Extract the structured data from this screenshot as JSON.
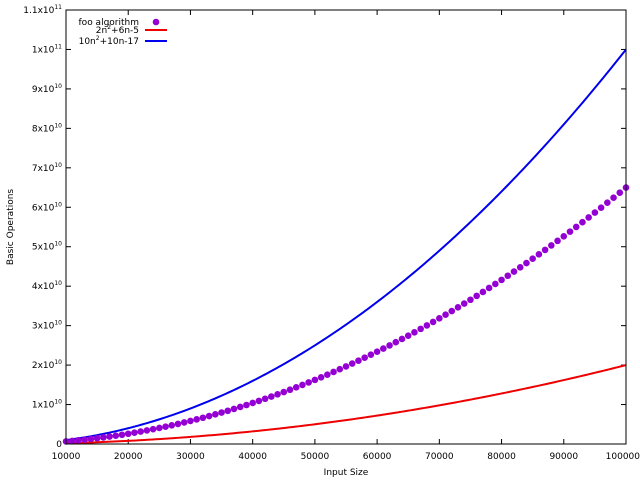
{
  "chart_data": {
    "type": "scatter",
    "title": "",
    "xlabel": "Input Size",
    "ylabel": "Basic Operations",
    "xlim": [
      10000,
      100000
    ],
    "ylim": [
      0,
      110000000000
    ],
    "grid": false,
    "legend_position": "top-left",
    "x_ticks": [
      {
        "value": 10000,
        "label": "10000"
      },
      {
        "value": 20000,
        "label": "20000"
      },
      {
        "value": 30000,
        "label": "30000"
      },
      {
        "value": 40000,
        "label": "40000"
      },
      {
        "value": 50000,
        "label": "50000"
      },
      {
        "value": 60000,
        "label": "60000"
      },
      {
        "value": 70000,
        "label": "70000"
      },
      {
        "value": 80000,
        "label": "80000"
      },
      {
        "value": 90000,
        "label": "90000"
      },
      {
        "value": 100000,
        "label": "100000"
      }
    ],
    "y_ticks": [
      {
        "value": 0,
        "label": "0"
      },
      {
        "value": 10000000000,
        "label": "1x10",
        "exp": "10"
      },
      {
        "value": 20000000000,
        "label": "2x10",
        "exp": "10"
      },
      {
        "value": 30000000000,
        "label": "3x10",
        "exp": "10"
      },
      {
        "value": 40000000000,
        "label": "4x10",
        "exp": "10"
      },
      {
        "value": 50000000000,
        "label": "5x10",
        "exp": "10"
      },
      {
        "value": 60000000000,
        "label": "6x10",
        "exp": "10"
      },
      {
        "value": 70000000000,
        "label": "7x10",
        "exp": "10"
      },
      {
        "value": 80000000000,
        "label": "8x10",
        "exp": "10"
      },
      {
        "value": 90000000000,
        "label": "9x10",
        "exp": "10"
      },
      {
        "value": 100000000000,
        "label": "1x10",
        "exp": "11"
      },
      {
        "value": 110000000000,
        "label": "1.1x10",
        "exp": "11"
      }
    ],
    "series": [
      {
        "name": "foo algorithm",
        "kind": "points",
        "color": "#9400d3",
        "x": [
          10000,
          11000,
          12000,
          13000,
          14000,
          15000,
          16000,
          17000,
          18000,
          19000,
          20000,
          21000,
          22000,
          23000,
          24000,
          25000,
          26000,
          27000,
          28000,
          29000,
          30000,
          31000,
          32000,
          33000,
          34000,
          35000,
          36000,
          37000,
          38000,
          39000,
          40000,
          41000,
          42000,
          43000,
          44000,
          45000,
          46000,
          47000,
          48000,
          49000,
          50000,
          51000,
          52000,
          53000,
          54000,
          55000,
          56000,
          57000,
          58000,
          59000,
          60000,
          61000,
          62000,
          63000,
          64000,
          65000,
          66000,
          67000,
          68000,
          69000,
          70000,
          71000,
          72000,
          73000,
          74000,
          75000,
          76000,
          77000,
          78000,
          79000,
          80000,
          81000,
          82000,
          83000,
          84000,
          85000,
          86000,
          87000,
          88000,
          89000,
          90000,
          91000,
          92000,
          93000,
          94000,
          95000,
          96000,
          97000,
          98000,
          99000,
          100000
        ],
        "y": [
          650000000,
          786500000,
          936000000,
          1098500000,
          1274000000,
          1462500000,
          1664000000,
          1878500000,
          2106000000,
          2346500000,
          2600000000,
          2866500000,
          3146000000,
          3438500000,
          3744000000,
          4062500000,
          4394000000,
          4738500000,
          5096000000,
          5466500000,
          5850000000,
          6246500000,
          6656000000,
          7078500000,
          7514000000,
          7962500000,
          8424000000,
          8898500000,
          9386000000,
          9886500000,
          10400000000,
          10926500000,
          11466000000,
          12018500000,
          12584000000,
          13162500000,
          13754000000,
          14358500000,
          14976000000,
          15606500000,
          16250000000,
          16906500000,
          17576000000,
          18258500000,
          18954000000,
          19662500000,
          20384000000,
          21118500000,
          21866000000,
          22626500000,
          23400000000,
          24186500000,
          24986000000,
          25798500000,
          26624000000,
          27462500000,
          28314000000,
          29178500000,
          30056000000,
          30946500000,
          31850000000,
          32766500000,
          33696000000,
          34638500000,
          35594000000,
          36562500000,
          37544000000,
          38538500000,
          39546000000,
          40566500000,
          41600000000,
          42646500000,
          43706000000,
          44778500000,
          45864000000,
          46962500000,
          48074000000,
          49198500000,
          50336000000,
          51486500000,
          52650000000,
          53826500000,
          55016000000,
          56218500000,
          57434000000,
          58662500000,
          59904000000,
          61158500000,
          62426000000,
          63706500000,
          65000000000
        ]
      },
      {
        "name": "2n^2+6n-5",
        "name_parts": [
          "2n",
          "2",
          "+6n-5"
        ],
        "kind": "line",
        "color": "#ee0000",
        "coeffs": [
          2,
          6,
          -5
        ]
      },
      {
        "name": "10n^2+10n-17",
        "name_parts": [
          "10n",
          "2",
          "+10n-17"
        ],
        "kind": "line",
        "color": "#0000ee",
        "coeffs": [
          10,
          10,
          -17
        ]
      }
    ]
  }
}
